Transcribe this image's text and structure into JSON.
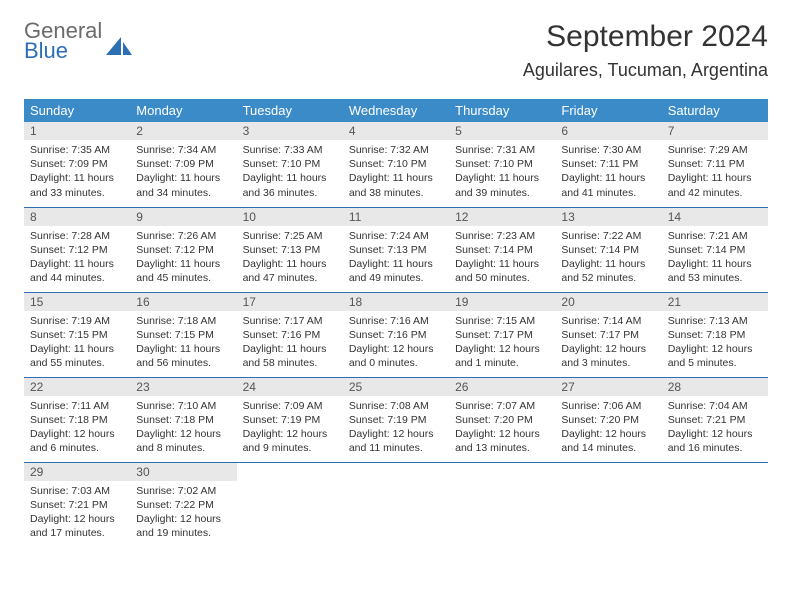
{
  "logo": {
    "text_gray": "General",
    "text_blue": "Blue"
  },
  "title": "September 2024",
  "location": "Aguilares, Tucuman, Argentina",
  "header_bg": "#3b8bc9",
  "daynum_bg": "#e8e8e8",
  "border_color": "#2d6fb5",
  "weekdays": [
    "Sunday",
    "Monday",
    "Tuesday",
    "Wednesday",
    "Thursday",
    "Friday",
    "Saturday"
  ],
  "days": [
    {
      "n": 1,
      "sunrise": "7:35 AM",
      "sunset": "7:09 PM",
      "daylight": "11 hours and 33 minutes."
    },
    {
      "n": 2,
      "sunrise": "7:34 AM",
      "sunset": "7:09 PM",
      "daylight": "11 hours and 34 minutes."
    },
    {
      "n": 3,
      "sunrise": "7:33 AM",
      "sunset": "7:10 PM",
      "daylight": "11 hours and 36 minutes."
    },
    {
      "n": 4,
      "sunrise": "7:32 AM",
      "sunset": "7:10 PM",
      "daylight": "11 hours and 38 minutes."
    },
    {
      "n": 5,
      "sunrise": "7:31 AM",
      "sunset": "7:10 PM",
      "daylight": "11 hours and 39 minutes."
    },
    {
      "n": 6,
      "sunrise": "7:30 AM",
      "sunset": "7:11 PM",
      "daylight": "11 hours and 41 minutes."
    },
    {
      "n": 7,
      "sunrise": "7:29 AM",
      "sunset": "7:11 PM",
      "daylight": "11 hours and 42 minutes."
    },
    {
      "n": 8,
      "sunrise": "7:28 AM",
      "sunset": "7:12 PM",
      "daylight": "11 hours and 44 minutes."
    },
    {
      "n": 9,
      "sunrise": "7:26 AM",
      "sunset": "7:12 PM",
      "daylight": "11 hours and 45 minutes."
    },
    {
      "n": 10,
      "sunrise": "7:25 AM",
      "sunset": "7:13 PM",
      "daylight": "11 hours and 47 minutes."
    },
    {
      "n": 11,
      "sunrise": "7:24 AM",
      "sunset": "7:13 PM",
      "daylight": "11 hours and 49 minutes."
    },
    {
      "n": 12,
      "sunrise": "7:23 AM",
      "sunset": "7:14 PM",
      "daylight": "11 hours and 50 minutes."
    },
    {
      "n": 13,
      "sunrise": "7:22 AM",
      "sunset": "7:14 PM",
      "daylight": "11 hours and 52 minutes."
    },
    {
      "n": 14,
      "sunrise": "7:21 AM",
      "sunset": "7:14 PM",
      "daylight": "11 hours and 53 minutes."
    },
    {
      "n": 15,
      "sunrise": "7:19 AM",
      "sunset": "7:15 PM",
      "daylight": "11 hours and 55 minutes."
    },
    {
      "n": 16,
      "sunrise": "7:18 AM",
      "sunset": "7:15 PM",
      "daylight": "11 hours and 56 minutes."
    },
    {
      "n": 17,
      "sunrise": "7:17 AM",
      "sunset": "7:16 PM",
      "daylight": "11 hours and 58 minutes."
    },
    {
      "n": 18,
      "sunrise": "7:16 AM",
      "sunset": "7:16 PM",
      "daylight": "12 hours and 0 minutes."
    },
    {
      "n": 19,
      "sunrise": "7:15 AM",
      "sunset": "7:17 PM",
      "daylight": "12 hours and 1 minute."
    },
    {
      "n": 20,
      "sunrise": "7:14 AM",
      "sunset": "7:17 PM",
      "daylight": "12 hours and 3 minutes."
    },
    {
      "n": 21,
      "sunrise": "7:13 AM",
      "sunset": "7:18 PM",
      "daylight": "12 hours and 5 minutes."
    },
    {
      "n": 22,
      "sunrise": "7:11 AM",
      "sunset": "7:18 PM",
      "daylight": "12 hours and 6 minutes."
    },
    {
      "n": 23,
      "sunrise": "7:10 AM",
      "sunset": "7:18 PM",
      "daylight": "12 hours and 8 minutes."
    },
    {
      "n": 24,
      "sunrise": "7:09 AM",
      "sunset": "7:19 PM",
      "daylight": "12 hours and 9 minutes."
    },
    {
      "n": 25,
      "sunrise": "7:08 AM",
      "sunset": "7:19 PM",
      "daylight": "12 hours and 11 minutes."
    },
    {
      "n": 26,
      "sunrise": "7:07 AM",
      "sunset": "7:20 PM",
      "daylight": "12 hours and 13 minutes."
    },
    {
      "n": 27,
      "sunrise": "7:06 AM",
      "sunset": "7:20 PM",
      "daylight": "12 hours and 14 minutes."
    },
    {
      "n": 28,
      "sunrise": "7:04 AM",
      "sunset": "7:21 PM",
      "daylight": "12 hours and 16 minutes."
    },
    {
      "n": 29,
      "sunrise": "7:03 AM",
      "sunset": "7:21 PM",
      "daylight": "12 hours and 17 minutes."
    },
    {
      "n": 30,
      "sunrise": "7:02 AM",
      "sunset": "7:22 PM",
      "daylight": "12 hours and 19 minutes."
    }
  ]
}
